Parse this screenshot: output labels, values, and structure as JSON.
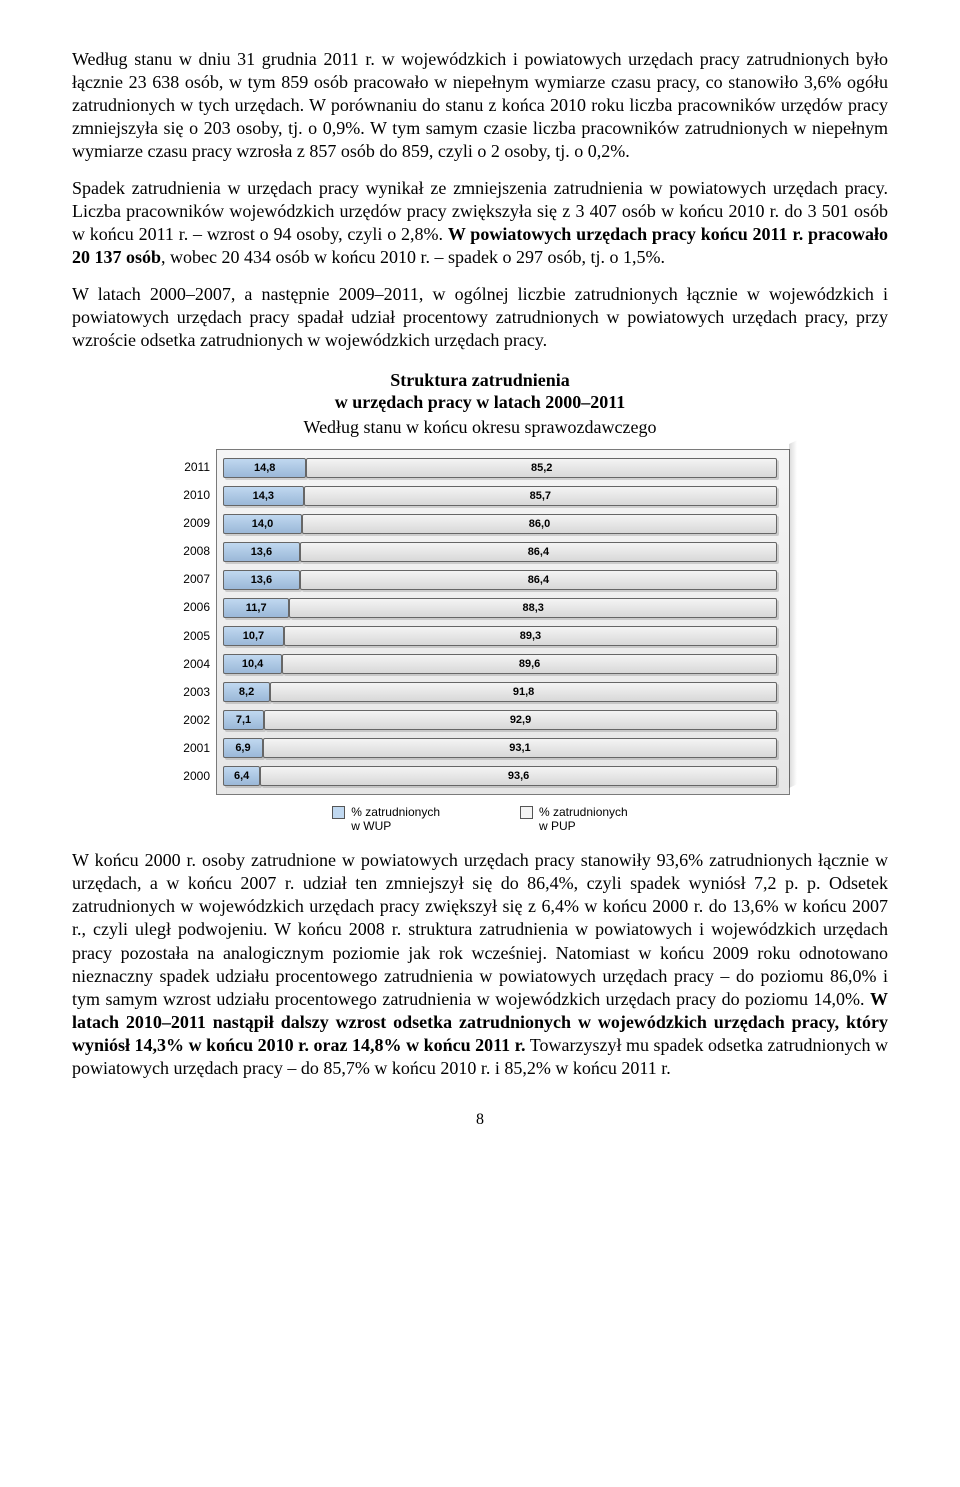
{
  "para1": "Według stanu w dniu 31 grudnia 2011 r. w wojewódzkich i powiatowych urzędach pracy zatrudnionych było łącznie 23 638 osób, w tym 859 osób pracowało w niepełnym wymiarze czasu pracy, co stanowiło 3,6% ogółu zatrudnionych w tych urzędach. W porównaniu do stanu z końca 2010 roku liczba pracowników urzędów pracy zmniejszyła się o 203 osoby, tj. o 0,9%. W tym samym czasie liczba pracowników zatrudnionych w niepełnym wymiarze czasu pracy wzrosła z 857 osób do 859, czyli o 2 osoby, tj. o 0,2%.",
  "para2_run1": "Spadek zatrudnienia w urzędach pracy wynikał ze zmniejszenia zatrudnienia w powiatowych urzędach pracy. Liczba pracowników wojewódzkich urzędów pracy zwiększyła się z 3 407 osób w końcu 2010 r. do 3 501 osób w końcu 2011 r.",
  "para2_run2_bold": "W powiatowych urzędach pracy końcu 2011 r. pracowało 20 137 osób",
  "para2_run3": ", wobec 20 434 osób w końcu 2010 r. – spadek o 297 osób, tj. o 1,5%.",
  "para2_insert_pre": " – wzrost o 94 osoby, czyli o 2,8%. ",
  "para3": "W latach 2000–2007, a następnie 2009–2011, w ogólnej liczbie zatrudnionych łącznie w wojewódzkich i powiatowych urzędach pracy spadał udział procentowy zatrudnionych w powiatowych urzędach pracy, przy wzroście odsetka zatrudnionych w wojewódzkich urzędach pracy.",
  "chart": {
    "title_line1": "Struktura zatrudnienia",
    "title_line2": "w urzędach pracy w latach 2000–2011",
    "subtitle": "Według stanu w końcu okresu sprawozdawczego",
    "years": [
      "2011",
      "2010",
      "2009",
      "2008",
      "2007",
      "2006",
      "2005",
      "2004",
      "2003",
      "2002",
      "2001",
      "2000"
    ],
    "wup": [
      14.8,
      14.3,
      14.0,
      13.6,
      13.6,
      11.7,
      10.7,
      10.4,
      8.2,
      7.1,
      6.9,
      6.4
    ],
    "pup": [
      85.2,
      85.7,
      86.0,
      86.4,
      86.4,
      88.3,
      89.3,
      89.6,
      91.8,
      92.9,
      93.1,
      93.6
    ],
    "wup_color": "#c0d8f0",
    "pup_color": "#f4f4f4",
    "legend_wup": "% zatrudnionych\nw WUP",
    "legend_pup": "% zatrudnionych\nw PUP"
  },
  "para4_run1": "W końcu 2000 r. osoby zatrudnione w powiatowych urzędach pracy stanowiły 93,6% zatrudnionych łącznie w urzędach, a w końcu 2007 r. udział ten zmniejszył się do 86,4%, czyli spadek wyniósł 7,2 p. p. Odsetek zatrudnionych w wojewódzkich urzędach pracy zwiększył się z 6,4% w końcu 2000 r. do 13,6% w końcu 2007 r., czyli uległ podwojeniu. W końcu 2008 r. struktura zatrudnienia w powiatowych i wojewódzkich urzędach pracy pozostała na analogicznym poziomie jak rok wcześniej. Natomiast w końcu 2009 roku odnotowano nieznaczny spadek udziału procentowego zatrudnienia w powiatowych urzędach pracy – do poziomu 86,0% i tym samym wzrost udziału procentowego zatrudnienia w wojewódzkich urzędach pracy do poziomu 14,0%. ",
  "para4_run2_bold": "W latach 2010–2011 nastąpił dalszy wzrost odsetka zatrudnionych w wojewódzkich urzędach pracy, który wyniósł 14,3% w końcu 2010 r. oraz 14,8% w końcu 2011 r.",
  "para4_run3": " Towarzyszył mu spadek odsetka zatrudnionych w powiatowych urzędach pracy – do 85,7% w końcu 2010 r. i 85,2% w końcu 2011 r.",
  "page_number": "8"
}
